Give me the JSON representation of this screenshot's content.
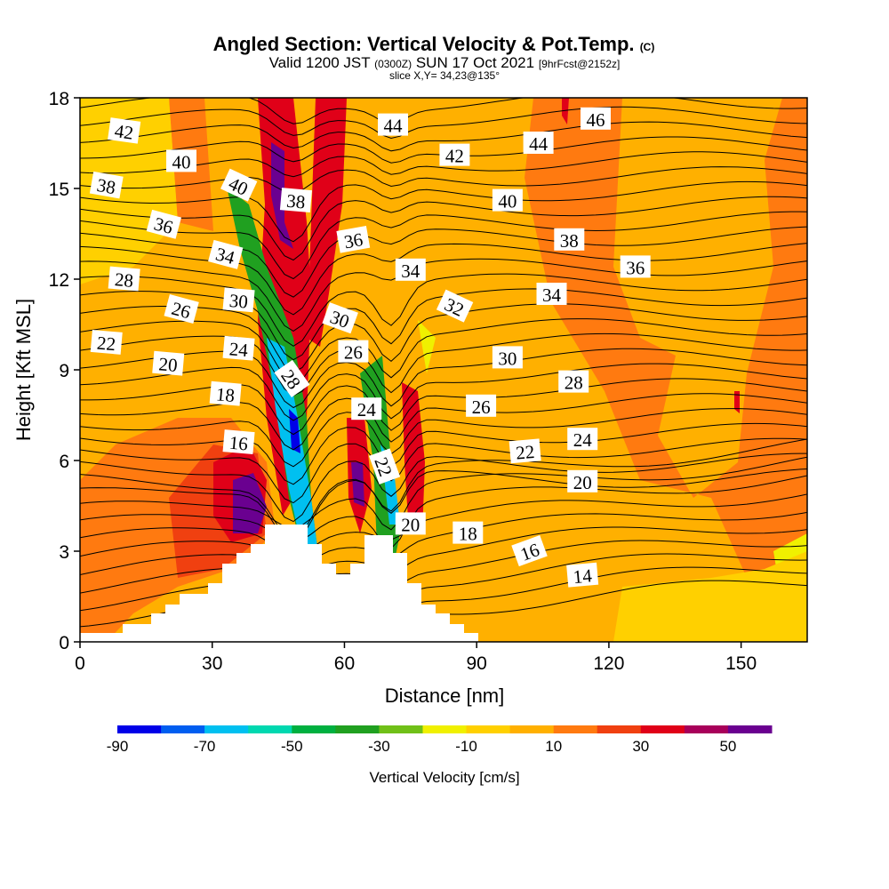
{
  "title": {
    "main": "Angled Section: Vertical Velocity & Pot.Temp.",
    "main_suffix": "(C)",
    "valid_prefix": "Valid 1200 JST",
    "valid_utc": "(0300Z)",
    "valid_date": "SUN 17 Oct 2021",
    "forecast": "[9hrFcst@2152z]",
    "slice": "slice X,Y= 34,23@135°"
  },
  "chart_data": {
    "type": "heatmap",
    "xlabel": "Distance [nm]",
    "ylabel": "Height [Kft MSL]",
    "xlim": [
      0,
      165
    ],
    "ylim": [
      0,
      18
    ],
    "x_ticks": [
      0,
      30,
      60,
      90,
      120,
      150
    ],
    "y_ticks": [
      0,
      3,
      6,
      9,
      12,
      15,
      18
    ],
    "colorbar": {
      "title": "Vertical Velocity [cm/s]",
      "tick_labels": [
        "-90",
        "-70",
        "-50",
        "-30",
        "-10",
        "10",
        "30",
        "50"
      ],
      "tick_values": [
        -90,
        -70,
        -50,
        -30,
        -10,
        10,
        30,
        50
      ],
      "bounds": [
        -90,
        -80,
        -70,
        -60,
        -50,
        -40,
        -30,
        -20,
        -10,
        0,
        10,
        20,
        30,
        40,
        50,
        60
      ],
      "colors": [
        "#0000e8",
        "#005ef0",
        "#00c0f0",
        "#00d8b0",
        "#00b040",
        "#20a020",
        "#70c018",
        "#f0f000",
        "#ffd000",
        "#ffb000",
        "#ff7a10",
        "#f04010",
        "#e00018",
        "#a8005a",
        "#6a0090"
      ]
    },
    "contour_labels": [
      {
        "text": "42",
        "x": 10,
        "y": 16.9,
        "angle": 8
      },
      {
        "text": "40",
        "x": 23,
        "y": 15.9,
        "angle": 0
      },
      {
        "text": "38",
        "x": 6,
        "y": 15.1,
        "angle": 10
      },
      {
        "text": "40",
        "x": 36,
        "y": 15.1,
        "angle": 25
      },
      {
        "text": "38",
        "x": 49,
        "y": 14.6,
        "angle": 5
      },
      {
        "text": "36",
        "x": 19,
        "y": 13.8,
        "angle": 15
      },
      {
        "text": "34",
        "x": 33,
        "y": 12.8,
        "angle": 15
      },
      {
        "text": "28",
        "x": 10,
        "y": 12.0,
        "angle": 5
      },
      {
        "text": "30",
        "x": 36,
        "y": 11.3,
        "angle": 5
      },
      {
        "text": "26",
        "x": 23,
        "y": 11.0,
        "angle": 15
      },
      {
        "text": "22",
        "x": 6,
        "y": 9.9,
        "angle": 5
      },
      {
        "text": "24",
        "x": 36,
        "y": 9.7,
        "angle": 5
      },
      {
        "text": "20",
        "x": 20,
        "y": 9.2,
        "angle": 5
      },
      {
        "text": "18",
        "x": 33,
        "y": 8.2,
        "angle": 5
      },
      {
        "text": "28",
        "x": 48,
        "y": 8.7,
        "angle": 55
      },
      {
        "text": "16",
        "x": 36,
        "y": 6.6,
        "angle": 5
      },
      {
        "text": "44",
        "x": 71,
        "y": 17.1,
        "angle": 0
      },
      {
        "text": "42",
        "x": 85,
        "y": 16.1,
        "angle": 0
      },
      {
        "text": "36",
        "x": 62,
        "y": 13.3,
        "angle": -10
      },
      {
        "text": "34",
        "x": 75,
        "y": 12.3,
        "angle": 0
      },
      {
        "text": "30",
        "x": 59,
        "y": 10.7,
        "angle": 20
      },
      {
        "text": "26",
        "x": 62,
        "y": 9.6,
        "angle": 0
      },
      {
        "text": "24",
        "x": 65,
        "y": 7.7,
        "angle": 0
      },
      {
        "text": "22",
        "x": 69,
        "y": 5.8,
        "angle": 70
      },
      {
        "text": "20",
        "x": 75,
        "y": 3.9,
        "angle": 0
      },
      {
        "text": "44",
        "x": 104,
        "y": 16.5,
        "angle": 0
      },
      {
        "text": "46",
        "x": 117,
        "y": 17.3,
        "angle": 0
      },
      {
        "text": "40",
        "x": 97,
        "y": 14.6,
        "angle": 0
      },
      {
        "text": "38",
        "x": 111,
        "y": 13.3,
        "angle": 0
      },
      {
        "text": "36",
        "x": 126,
        "y": 12.4,
        "angle": 0
      },
      {
        "text": "32",
        "x": 85,
        "y": 11.1,
        "angle": 25
      },
      {
        "text": "34",
        "x": 107,
        "y": 11.5,
        "angle": 0
      },
      {
        "text": "30",
        "x": 97,
        "y": 9.4,
        "angle": 0
      },
      {
        "text": "28",
        "x": 112,
        "y": 8.6,
        "angle": 0
      },
      {
        "text": "26",
        "x": 91,
        "y": 7.8,
        "angle": 0
      },
      {
        "text": "24",
        "x": 114,
        "y": 6.7,
        "angle": 0
      },
      {
        "text": "22",
        "x": 101,
        "y": 6.3,
        "angle": -5
      },
      {
        "text": "20",
        "x": 114,
        "y": 5.3,
        "angle": 0
      },
      {
        "text": "18",
        "x": 88,
        "y": 3.6,
        "angle": 0
      },
      {
        "text": "16",
        "x": 102,
        "y": 3.0,
        "angle": -20
      },
      {
        "text": "14",
        "x": 114,
        "y": 2.2,
        "angle": -5
      }
    ]
  }
}
